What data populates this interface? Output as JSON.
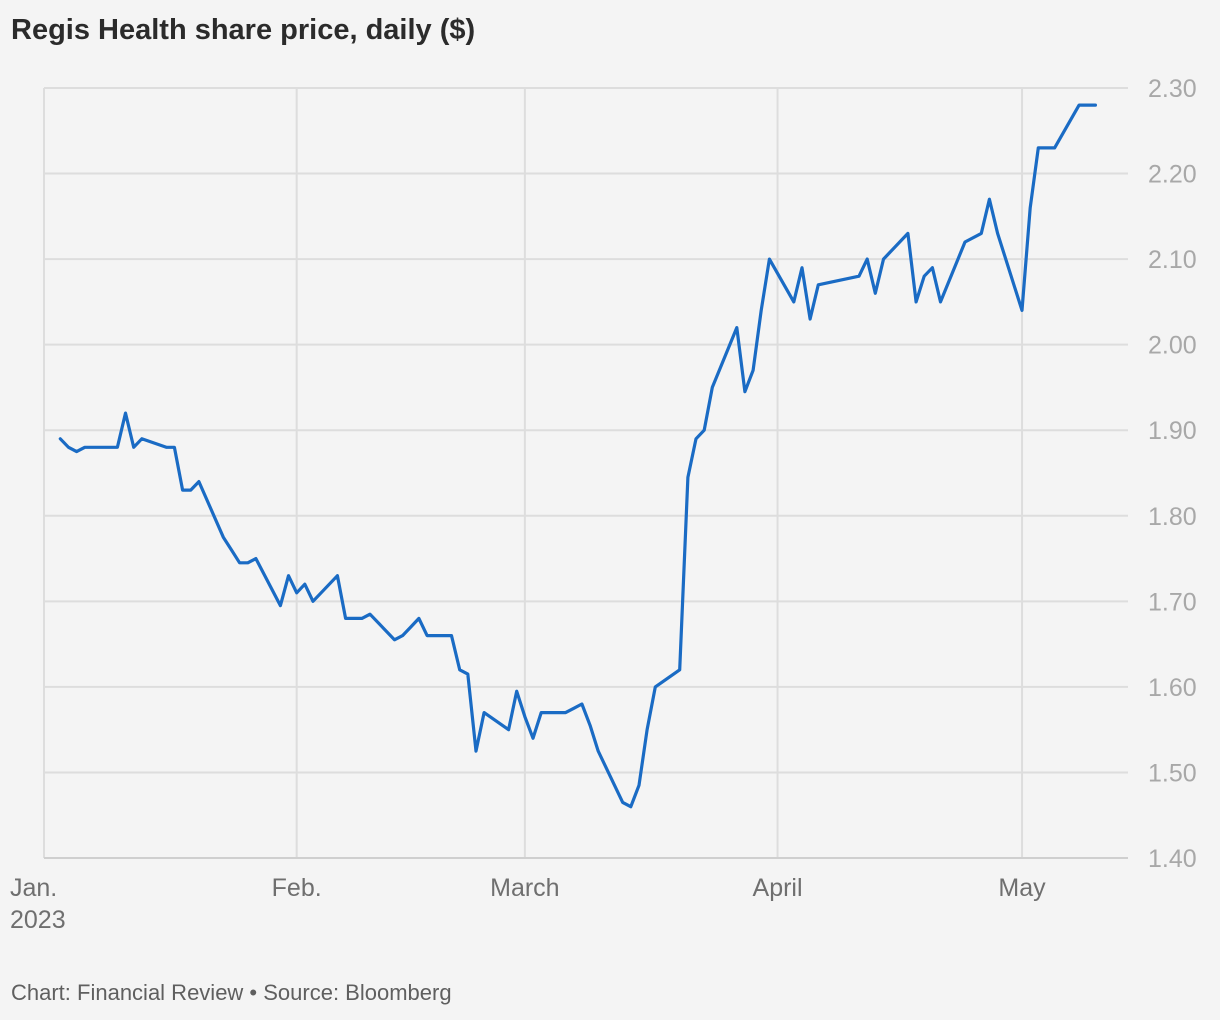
{
  "title": "Regis Health share price, daily ($)",
  "footer": {
    "credit": "Chart: Financial Review",
    "separator": " • ",
    "source": "Source: Bloomberg"
  },
  "colors": {
    "line": "#1a6bc4",
    "grid": "#dddddd",
    "background": "#f4f4f4"
  },
  "chart_data": {
    "type": "line",
    "title": "Regis Health share price, daily ($)",
    "xlabel": "",
    "ylabel": "",
    "grid": true,
    "y_axis_position": "right",
    "ylim": [
      1.4,
      2.3
    ],
    "xlim": [
      "2023-01-01",
      "2023-05-14"
    ],
    "y_ticks": [
      1.4,
      1.5,
      1.6,
      1.7,
      1.8,
      1.9,
      2.0,
      2.1,
      2.2,
      2.3
    ],
    "y_tick_labels": [
      "1.40",
      "1.50",
      "1.60",
      "1.70",
      "1.80",
      "1.90",
      "2.00",
      "2.10",
      "2.20",
      "2.30"
    ],
    "x_ticks": [
      {
        "date": "2023-01-01",
        "label": "Jan.",
        "sublabel": "2023"
      },
      {
        "date": "2023-02-01",
        "label": "Feb.",
        "sublabel": ""
      },
      {
        "date": "2023-03-01",
        "label": "March",
        "sublabel": ""
      },
      {
        "date": "2023-04-01",
        "label": "April",
        "sublabel": ""
      },
      {
        "date": "2023-05-01",
        "label": "May",
        "sublabel": ""
      }
    ],
    "series": [
      {
        "x": [
          "2023-01-03",
          "2023-01-04",
          "2023-01-05",
          "2023-01-06",
          "2023-01-09",
          "2023-01-10",
          "2023-01-11",
          "2023-01-12",
          "2023-01-13",
          "2023-01-16",
          "2023-01-17",
          "2023-01-18",
          "2023-01-19",
          "2023-01-20",
          "2023-01-23",
          "2023-01-24",
          "2023-01-25",
          "2023-01-26",
          "2023-01-27",
          "2023-01-30",
          "2023-01-31",
          "2023-02-01",
          "2023-02-02",
          "2023-02-03",
          "2023-02-06",
          "2023-02-07",
          "2023-02-08",
          "2023-02-09",
          "2023-02-10",
          "2023-02-13",
          "2023-02-14",
          "2023-02-15",
          "2023-02-16",
          "2023-02-17",
          "2023-02-20",
          "2023-02-21",
          "2023-02-22",
          "2023-02-23",
          "2023-02-24",
          "2023-02-27",
          "2023-02-28",
          "2023-03-01",
          "2023-03-02",
          "2023-03-03",
          "2023-03-06",
          "2023-03-07",
          "2023-03-08",
          "2023-03-09",
          "2023-03-10",
          "2023-03-13",
          "2023-03-14",
          "2023-03-15",
          "2023-03-16",
          "2023-03-17",
          "2023-03-20",
          "2023-03-21",
          "2023-03-22",
          "2023-03-23",
          "2023-03-24",
          "2023-03-27",
          "2023-03-28",
          "2023-03-29",
          "2023-03-30",
          "2023-03-31",
          "2023-04-03",
          "2023-04-04",
          "2023-04-05",
          "2023-04-06",
          "2023-04-11",
          "2023-04-12",
          "2023-04-13",
          "2023-04-14",
          "2023-04-17",
          "2023-04-18",
          "2023-04-19",
          "2023-04-20",
          "2023-04-21",
          "2023-04-24",
          "2023-04-26",
          "2023-04-27",
          "2023-04-28",
          "2023-05-01",
          "2023-05-02",
          "2023-05-03",
          "2023-05-04",
          "2023-05-05",
          "2023-05-08",
          "2023-05-09",
          "2023-05-10"
        ],
        "values": [
          1.89,
          1.88,
          1.875,
          1.88,
          1.88,
          1.88,
          1.92,
          1.88,
          1.89,
          1.88,
          1.88,
          1.83,
          1.83,
          1.84,
          1.775,
          1.76,
          1.745,
          1.745,
          1.75,
          1.695,
          1.73,
          1.71,
          1.72,
          1.7,
          1.73,
          1.68,
          1.68,
          1.68,
          1.685,
          1.655,
          1.66,
          1.67,
          1.68,
          1.66,
          1.66,
          1.62,
          1.615,
          1.525,
          1.57,
          1.55,
          1.595,
          1.565,
          1.54,
          1.57,
          1.57,
          1.575,
          1.58,
          1.555,
          1.525,
          1.465,
          1.46,
          1.485,
          1.55,
          1.6,
          1.62,
          1.845,
          1.89,
          1.9,
          1.95,
          2.02,
          1.945,
          1.97,
          2.04,
          2.1,
          2.05,
          2.09,
          2.03,
          2.07,
          2.08,
          2.1,
          2.06,
          2.1,
          2.13,
          2.05,
          2.08,
          2.09,
          2.05,
          2.12,
          2.13,
          2.17,
          2.13,
          2.04,
          2.16,
          2.23,
          2.23,
          2.23,
          2.28,
          2.28,
          2.28
        ]
      }
    ]
  }
}
